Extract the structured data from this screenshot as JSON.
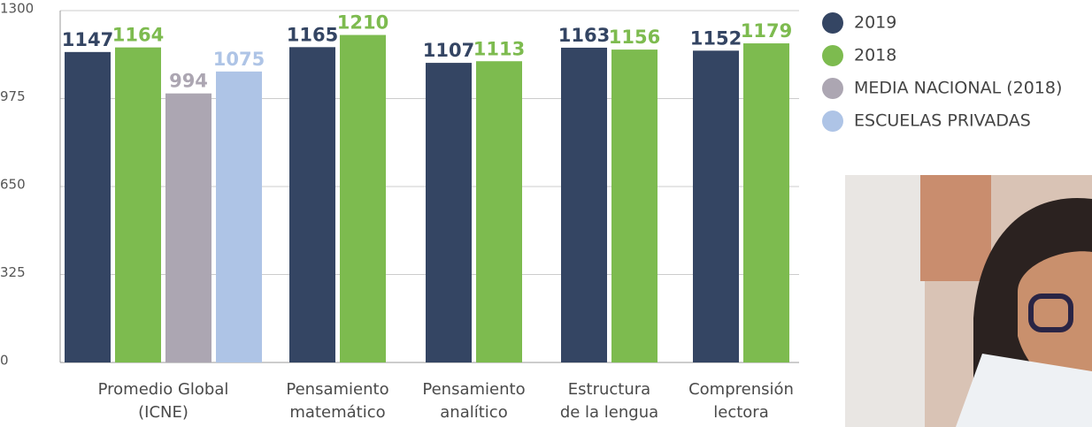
{
  "chart_data": {
    "type": "bar",
    "categories": [
      "Promedio Global\n(ICNE)",
      "Pensamiento\nmatemático",
      "Pensamiento\nanalítico",
      "Estructura\nde la lengua",
      "Comprensión\nlectora"
    ],
    "series": [
      {
        "name": "2019",
        "color": "#344563",
        "values": [
          1147,
          1165,
          1107,
          1163,
          1152
        ]
      },
      {
        "name": "2018",
        "color": "#7dbb4f",
        "values": [
          1164,
          1210,
          1113,
          1156,
          1179
        ]
      },
      {
        "name": "MEDIA NACIONAL (2018)",
        "color": "#aca6b2",
        "values": [
          994,
          null,
          null,
          null,
          null
        ]
      },
      {
        "name": "ESCUELAS PRIVADAS",
        "color": "#aec4e6",
        "values": [
          1075,
          null,
          null,
          null,
          null
        ]
      }
    ],
    "ylim": [
      0,
      1300
    ],
    "yticks": [
      0,
      325,
      650,
      975,
      1300
    ],
    "grid": true,
    "legend": "top-right"
  }
}
